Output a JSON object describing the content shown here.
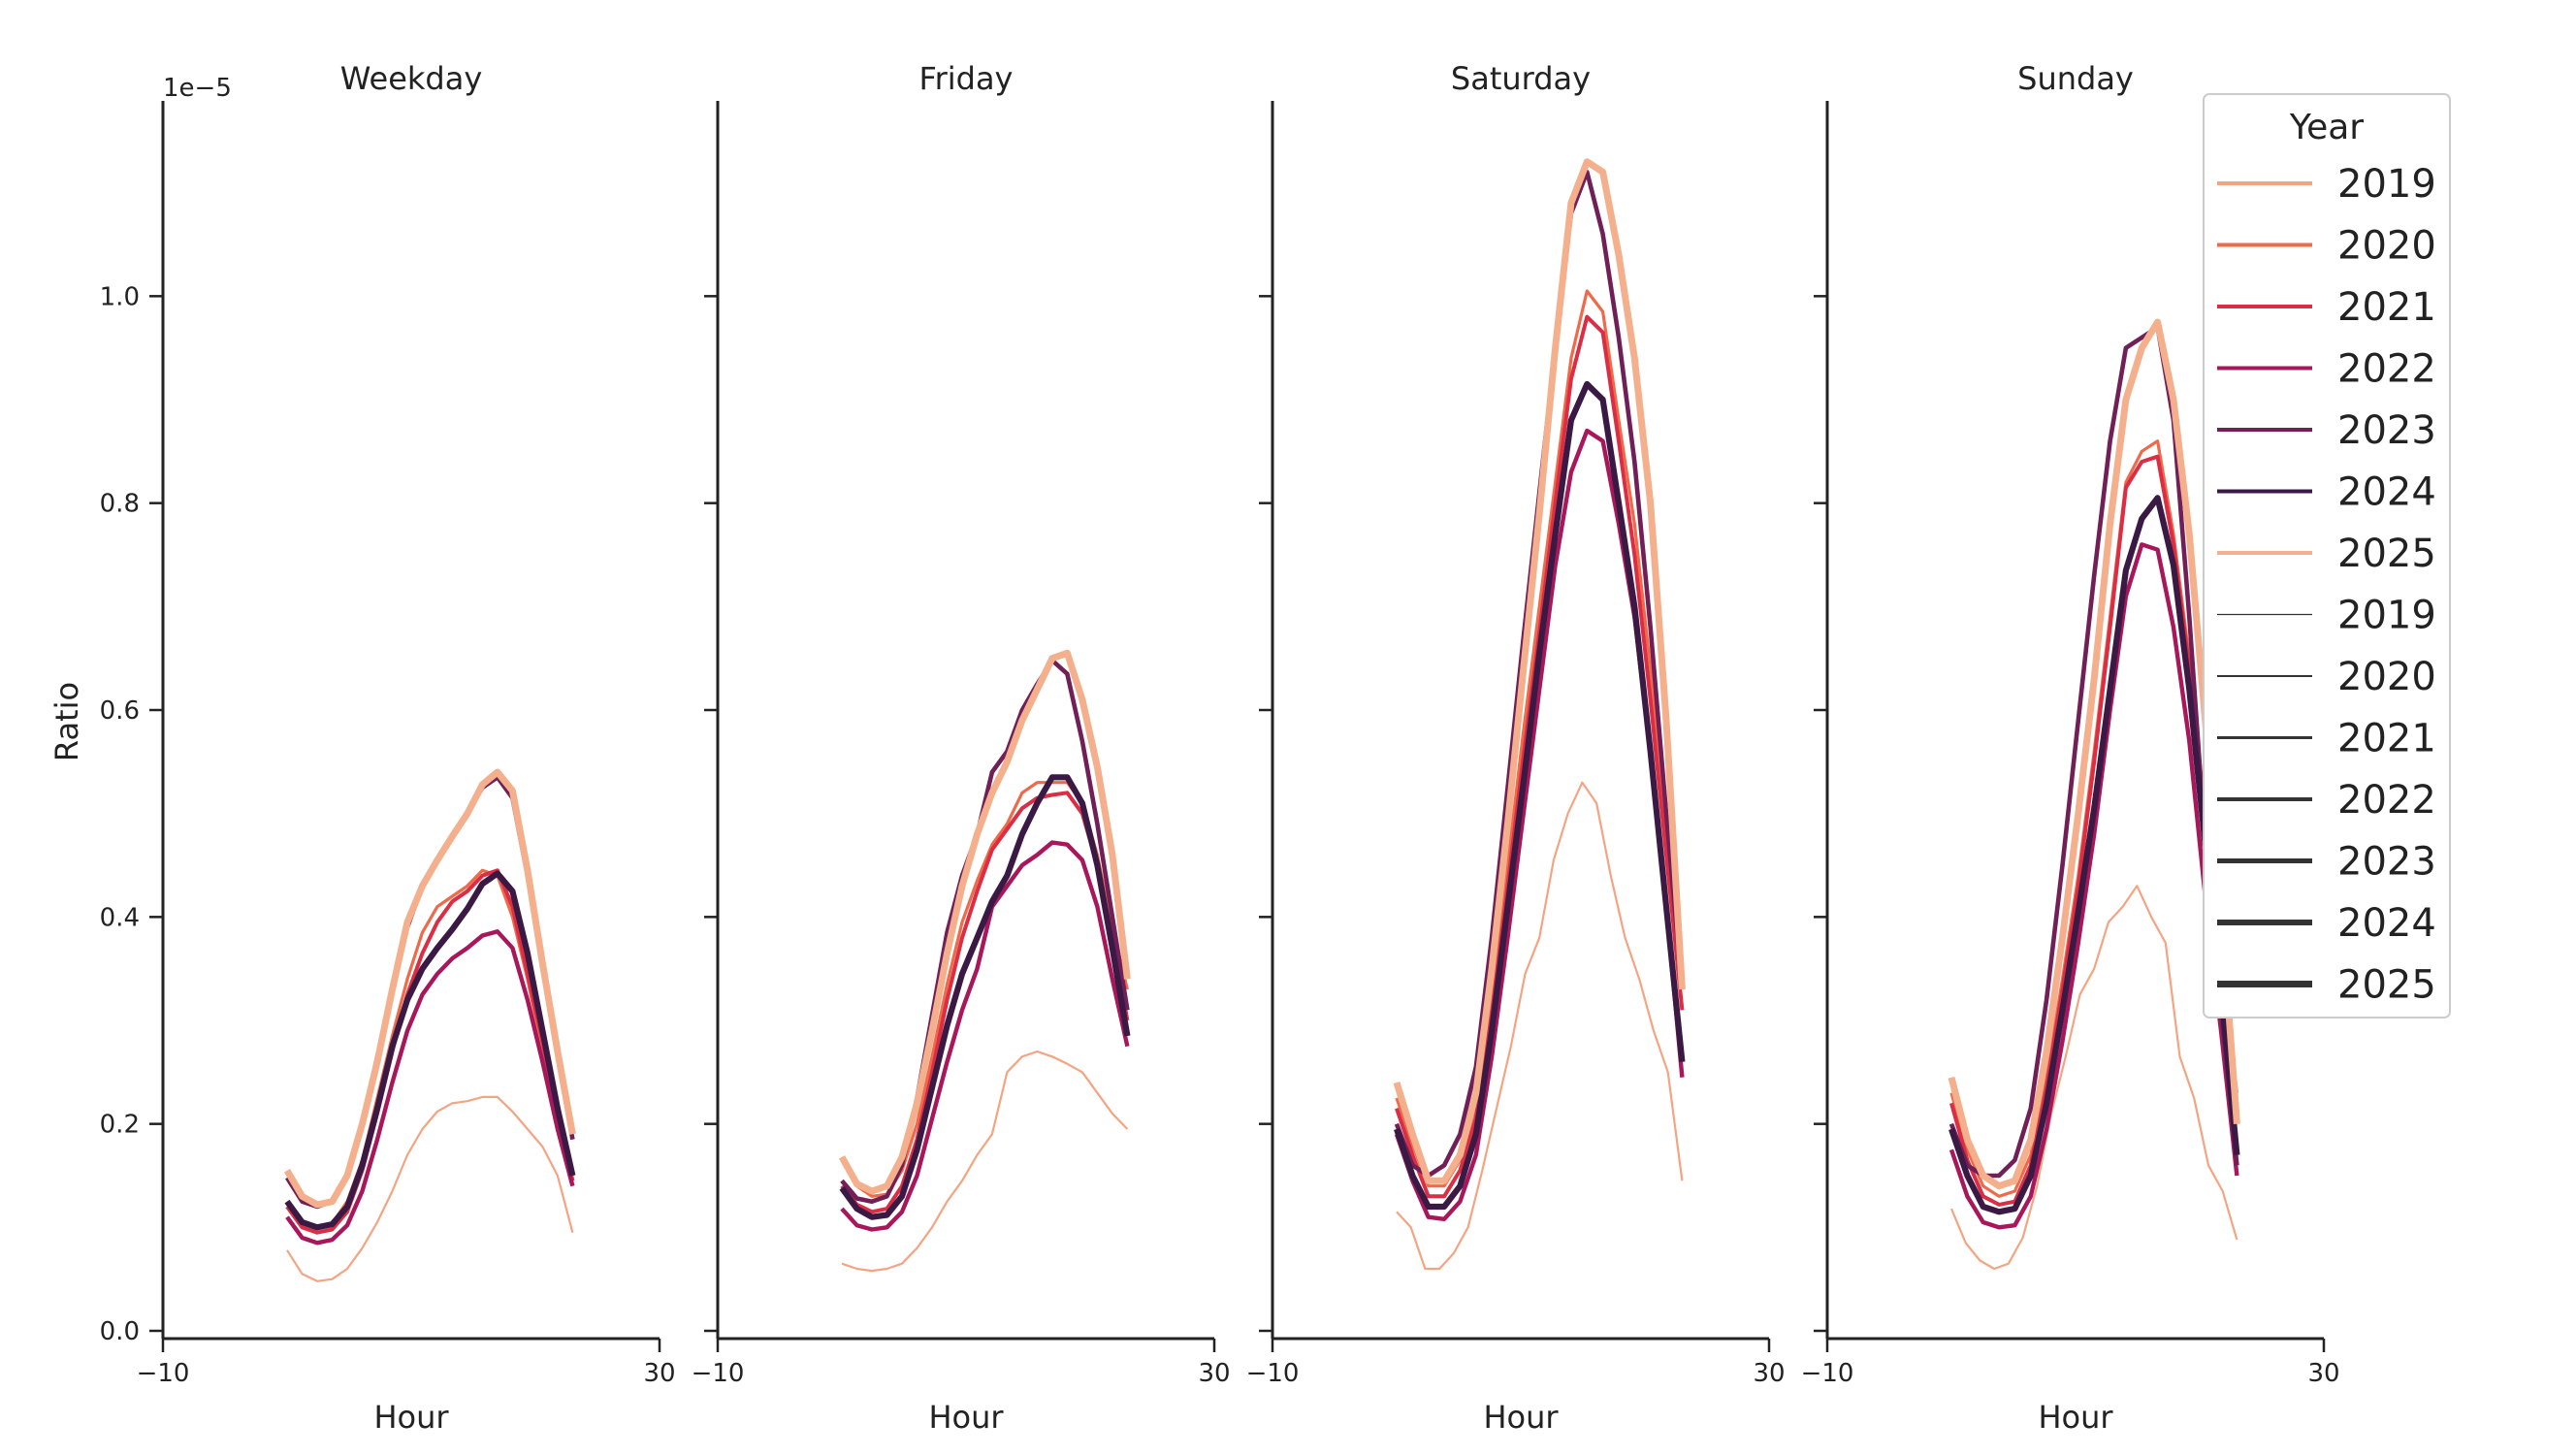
{
  "chart_data": {
    "type": "line",
    "xlabel": "Hour",
    "ylabel": "Ratio",
    "y_offset_text": "1e−5",
    "xlim": [
      -10,
      30
    ],
    "ylim": [
      0,
      1.2
    ],
    "x_ticks": [
      -10,
      30
    ],
    "x_tick_labels": [
      "−10",
      "30"
    ],
    "y_ticks": [
      0.0,
      0.2,
      0.4,
      0.6,
      0.8,
      1.0
    ],
    "y_tick_labels": [
      "0.0",
      "0.2",
      "0.4",
      "0.6",
      "0.8",
      "1.0"
    ],
    "hours": [
      0,
      1,
      2,
      3,
      4,
      5,
      6,
      7,
      8,
      9,
      10,
      11,
      12,
      13,
      14,
      15,
      16,
      17,
      18,
      19,
      20,
      21,
      22,
      23
    ],
    "legend": {
      "title": "Year",
      "hue_entries": [
        {
          "label": "2019",
          "color": "#f3a583"
        },
        {
          "label": "2020",
          "color": "#ee6a4a"
        },
        {
          "label": "2021",
          "color": "#db2d43"
        },
        {
          "label": "2022",
          "color": "#a8175a"
        },
        {
          "label": "2023",
          "color": "#701f57"
        },
        {
          "label": "2024",
          "color": "#3a1a44"
        },
        {
          "label": "2025",
          "color": "#f4b08c"
        }
      ],
      "size_entries": [
        {
          "label": "2019",
          "width": 1.2
        },
        {
          "label": "2020",
          "width": 2
        },
        {
          "label": "2021",
          "width": 3
        },
        {
          "label": "2022",
          "width": 4
        },
        {
          "label": "2023",
          "width": 5
        },
        {
          "label": "2024",
          "width": 6
        },
        {
          "label": "2025",
          "width": 7
        }
      ]
    },
    "panels": [
      {
        "title": "Weekday",
        "series": [
          {
            "name": "2019",
            "values": [
              0.078,
              0.055,
              0.048,
              0.05,
              0.06,
              0.08,
              0.105,
              0.135,
              0.17,
              0.195,
              0.212,
              0.22,
              0.222,
              0.226,
              0.226,
              0.212,
              0.195,
              0.178,
              0.15,
              0.095
            ]
          },
          {
            "name": "2020",
            "values": [
              0.125,
              0.105,
              0.1,
              0.104,
              0.125,
              0.165,
              0.225,
              0.285,
              0.34,
              0.385,
              0.41,
              0.42,
              0.43,
              0.445,
              0.44,
              0.4,
              0.34,
              0.27,
              0.205,
              0.15
            ]
          },
          {
            "name": "2021",
            "values": [
              0.12,
              0.1,
              0.095,
              0.098,
              0.115,
              0.155,
              0.21,
              0.27,
              0.325,
              0.365,
              0.395,
              0.415,
              0.425,
              0.44,
              0.445,
              0.41,
              0.345,
              0.28,
              0.21,
              0.145
            ]
          },
          {
            "name": "2022",
            "values": [
              0.11,
              0.09,
              0.085,
              0.088,
              0.102,
              0.135,
              0.185,
              0.24,
              0.29,
              0.325,
              0.345,
              0.36,
              0.37,
              0.382,
              0.386,
              0.37,
              0.32,
              0.26,
              0.195,
              0.14
            ]
          },
          {
            "name": "2023",
            "values": [
              0.148,
              0.125,
              0.12,
              0.125,
              0.15,
              0.2,
              0.265,
              0.33,
              0.39,
              0.43,
              0.455,
              0.478,
              0.5,
              0.525,
              0.535,
              0.515,
              0.44,
              0.35,
              0.265,
              0.185
            ]
          },
          {
            "name": "2024",
            "values": [
              0.125,
              0.105,
              0.1,
              0.103,
              0.12,
              0.16,
              0.215,
              0.275,
              0.32,
              0.35,
              0.37,
              0.388,
              0.408,
              0.432,
              0.442,
              0.425,
              0.365,
              0.29,
              0.215,
              0.15
            ]
          },
          {
            "name": "2025",
            "values": [
              0.155,
              0.13,
              0.122,
              0.125,
              0.15,
              0.2,
              0.26,
              0.33,
              0.395,
              0.43,
              0.455,
              0.478,
              0.5,
              0.528,
              0.54,
              0.522,
              0.445,
              0.355,
              0.27,
              0.19
            ]
          }
        ]
      },
      {
        "title": "Friday",
        "series": [
          {
            "name": "2019",
            "values": [
              0.065,
              0.06,
              0.058,
              0.06,
              0.065,
              0.08,
              0.1,
              0.125,
              0.145,
              0.17,
              0.19,
              0.25,
              0.265,
              0.27,
              0.265,
              0.258,
              0.25,
              0.23,
              0.21,
              0.195
            ]
          },
          {
            "name": "2020",
            "values": [
              0.165,
              0.14,
              0.13,
              0.132,
              0.155,
              0.2,
              0.265,
              0.335,
              0.395,
              0.435,
              0.47,
              0.49,
              0.52,
              0.53,
              0.53,
              0.53,
              0.51,
              0.46,
              0.39,
              0.33
            ]
          },
          {
            "name": "2021",
            "values": [
              0.14,
              0.122,
              0.115,
              0.118,
              0.14,
              0.185,
              0.25,
              0.32,
              0.38,
              0.425,
              0.465,
              0.485,
              0.505,
              0.515,
              0.518,
              0.52,
              0.5,
              0.45,
              0.38,
              0.3
            ]
          },
          {
            "name": "2022",
            "values": [
              0.118,
              0.102,
              0.098,
              0.1,
              0.115,
              0.15,
              0.205,
              0.26,
              0.31,
              0.35,
              0.41,
              0.43,
              0.45,
              0.46,
              0.472,
              0.47,
              0.455,
              0.41,
              0.34,
              0.275
            ]
          },
          {
            "name": "2023",
            "values": [
              0.145,
              0.128,
              0.125,
              0.13,
              0.16,
              0.225,
              0.305,
              0.385,
              0.44,
              0.48,
              0.54,
              0.56,
              0.6,
              0.625,
              0.648,
              0.635,
              0.57,
              0.49,
              0.4,
              0.31
            ]
          },
          {
            "name": "2024",
            "values": [
              0.138,
              0.118,
              0.11,
              0.112,
              0.13,
              0.175,
              0.235,
              0.295,
              0.345,
              0.38,
              0.415,
              0.44,
              0.48,
              0.51,
              0.535,
              0.535,
              0.51,
              0.45,
              0.37,
              0.285
            ]
          },
          {
            "name": "2025",
            "values": [
              0.168,
              0.142,
              0.135,
              0.14,
              0.168,
              0.22,
              0.29,
              0.365,
              0.43,
              0.48,
              0.52,
              0.55,
              0.59,
              0.62,
              0.65,
              0.655,
              0.61,
              0.545,
              0.46,
              0.34
            ]
          }
        ]
      },
      {
        "title": "Saturday",
        "series": [
          {
            "name": "2019",
            "values": [
              0.115,
              0.1,
              0.06,
              0.06,
              0.075,
              0.1,
              0.155,
              0.215,
              0.275,
              0.345,
              0.38,
              0.455,
              0.5,
              0.53,
              0.51,
              0.44,
              0.38,
              0.34,
              0.29,
              0.25,
              0.145
            ]
          },
          {
            "name": "2020",
            "values": [
              0.225,
              0.18,
              0.14,
              0.14,
              0.165,
              0.215,
              0.32,
              0.45,
              0.58,
              0.7,
              0.82,
              0.94,
              1.005,
              0.985,
              0.88,
              0.78,
              0.64,
              0.49,
              0.33
            ]
          },
          {
            "name": "2021",
            "values": [
              0.215,
              0.17,
              0.13,
              0.13,
              0.155,
              0.205,
              0.305,
              0.43,
              0.555,
              0.675,
              0.8,
              0.92,
              0.98,
              0.965,
              0.86,
              0.75,
              0.61,
              0.46,
              0.31
            ]
          },
          {
            "name": "2022",
            "values": [
              0.19,
              0.145,
              0.11,
              0.108,
              0.125,
              0.17,
              0.265,
              0.38,
              0.5,
              0.62,
              0.74,
              0.83,
              0.87,
              0.86,
              0.78,
              0.69,
              0.56,
              0.41,
              0.245
            ]
          },
          {
            "name": "2023",
            "values": [
              0.2,
              0.16,
              0.15,
              0.16,
              0.19,
              0.255,
              0.38,
              0.525,
              0.67,
              0.81,
              0.95,
              1.08,
              1.12,
              1.06,
              0.96,
              0.84,
              0.68,
              0.5,
              0.33
            ]
          },
          {
            "name": "2024",
            "values": [
              0.195,
              0.15,
              0.12,
              0.12,
              0.14,
              0.19,
              0.29,
              0.41,
              0.53,
              0.655,
              0.77,
              0.88,
              0.915,
              0.9,
              0.8,
              0.7,
              0.56,
              0.41,
              0.26
            ]
          },
          {
            "name": "2025",
            "values": [
              0.24,
              0.19,
              0.145,
              0.145,
              0.17,
              0.23,
              0.35,
              0.49,
              0.64,
              0.79,
              0.95,
              1.09,
              1.13,
              1.12,
              1.04,
              0.94,
              0.8,
              0.59,
              0.33
            ]
          }
        ]
      },
      {
        "title": "Sunday",
        "series": [
          {
            "name": "2019",
            "values": [
              0.118,
              0.085,
              0.068,
              0.06,
              0.065,
              0.09,
              0.14,
              0.21,
              0.265,
              0.325,
              0.35,
              0.395,
              0.41,
              0.43,
              0.4,
              0.375,
              0.265,
              0.225,
              0.16,
              0.135,
              0.088
            ]
          },
          {
            "name": "2020",
            "values": [
              0.23,
              0.175,
              0.14,
              0.13,
              0.135,
              0.17,
              0.245,
              0.34,
              0.44,
              0.56,
              0.69,
              0.82,
              0.85,
              0.86,
              0.77,
              0.65,
              0.5,
              0.36,
              0.23
            ]
          },
          {
            "name": "2021",
            "values": [
              0.22,
              0.165,
              0.13,
              0.122,
              0.125,
              0.16,
              0.235,
              0.33,
              0.43,
              0.55,
              0.68,
              0.815,
              0.84,
              0.845,
              0.76,
              0.64,
              0.48,
              0.34,
              0.2
            ]
          },
          {
            "name": "2022",
            "values": [
              0.175,
              0.13,
              0.105,
              0.1,
              0.102,
              0.13,
              0.195,
              0.28,
              0.375,
              0.48,
              0.6,
              0.71,
              0.76,
              0.755,
              0.68,
              0.57,
              0.42,
              0.29,
              0.15
            ]
          },
          {
            "name": "2023",
            "values": [
              0.2,
              0.16,
              0.15,
              0.15,
              0.165,
              0.215,
              0.32,
              0.45,
              0.59,
              0.73,
              0.86,
              0.95,
              0.96,
              0.97,
              0.88,
              0.69,
              0.47,
              0.31,
              0.16
            ]
          },
          {
            "name": "2024",
            "values": [
              0.195,
              0.15,
              0.12,
              0.115,
              0.118,
              0.15,
              0.22,
              0.31,
              0.405,
              0.505,
              0.62,
              0.735,
              0.785,
              0.805,
              0.74,
              0.62,
              0.47,
              0.33,
              0.17
            ]
          },
          {
            "name": "2025",
            "values": [
              0.245,
              0.185,
              0.15,
              0.14,
              0.145,
              0.185,
              0.27,
              0.38,
              0.5,
              0.63,
              0.78,
              0.9,
              0.95,
              0.975,
              0.9,
              0.77,
              0.59,
              0.41,
              0.2
            ]
          }
        ]
      }
    ]
  }
}
